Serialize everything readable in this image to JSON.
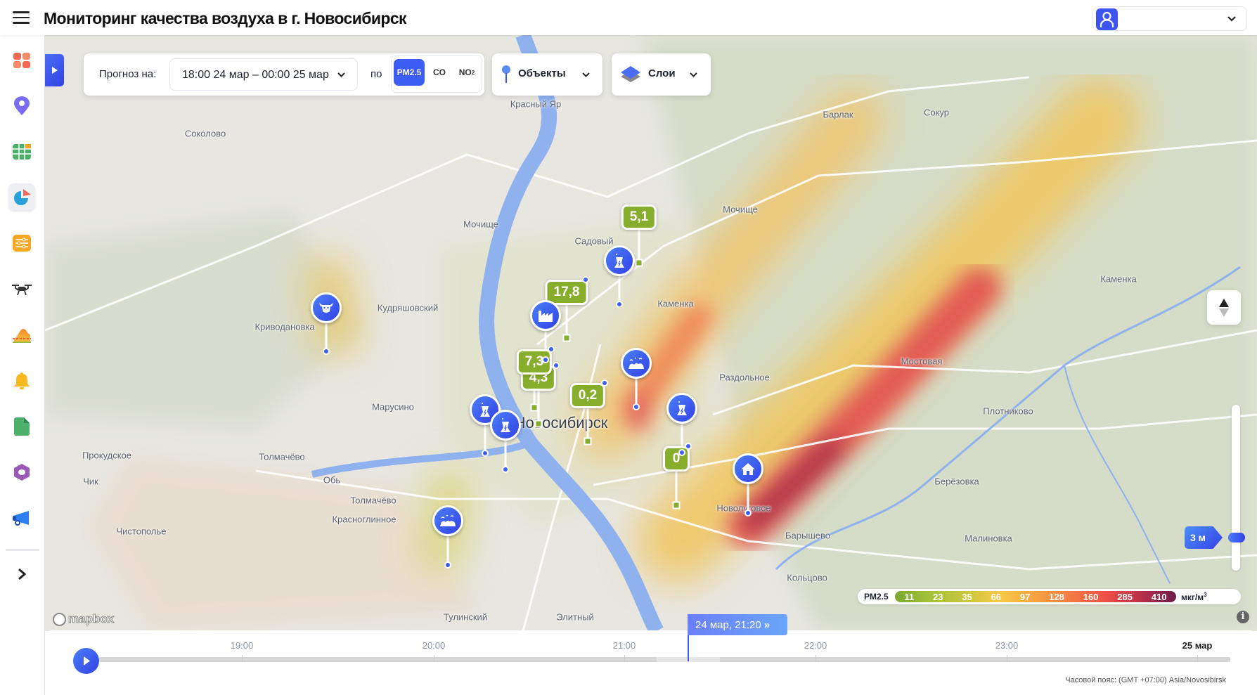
{
  "header": {
    "title": "Мониторинг качества воздуха в г. Новосибирск",
    "menu_icon": "hamburger-icon",
    "user_icon": "user-icon"
  },
  "sidebar": {
    "items": [
      {
        "icon": "dashboard-icon",
        "color": "#f26a55"
      },
      {
        "icon": "location-pin-icon",
        "color": "#7b6cf5"
      },
      {
        "icon": "table-icon",
        "color": "#4caf6a"
      },
      {
        "icon": "pie-chart-icon",
        "color": "#2aa0d8",
        "active": true
      },
      {
        "icon": "sliders-icon",
        "color": "#f5a623"
      },
      {
        "icon": "drone-icon",
        "color": "#333"
      },
      {
        "icon": "area-chart-icon",
        "color": "#f08a2a"
      },
      {
        "icon": "bell-icon",
        "color": "#f8b820"
      },
      {
        "icon": "document-icon",
        "color": "#4caf6a"
      },
      {
        "icon": "hexagon-icon",
        "color": "#9b59b6"
      },
      {
        "icon": "megaphone-icon",
        "color": "#2d7ef0"
      }
    ],
    "expand_icon": "chevron-right-icon"
  },
  "toolbar": {
    "forecast_label": "Прогноз на:",
    "period": "18:00 24 мар – 00:00 25 мар",
    "by_label": "по",
    "pollutants": [
      {
        "label": "PM2.5",
        "active": true
      },
      {
        "label": "CO",
        "active": false
      },
      {
        "label": "NO",
        "sub": "2",
        "active": false
      }
    ],
    "objects_label": "Объекты",
    "layers_label": "Слои"
  },
  "map": {
    "places": [
      "Красный Яр",
      "Соколово",
      "Барлак",
      "Сокур",
      "Мочище",
      "Мочище",
      "Садовый",
      "Кудряшовский",
      "Криводановка",
      "Каменка",
      "Каменка",
      "Мостовая",
      "Раздольное",
      "Плотниково",
      "Марусино",
      "Новосибирск",
      "Прокудское",
      "Толмачёво",
      "Обь",
      "Чик",
      "Толмачёво",
      "Красноглинное",
      "Берёзовка",
      "Новолуговое",
      "Барышево",
      "Малиновка",
      "Кольцово",
      "Чистополье",
      "Тулинский",
      "Элитный"
    ],
    "source_markers": [
      {
        "type": "cow-icon"
      },
      {
        "type": "factory-icon"
      },
      {
        "type": "power-plant-icon"
      },
      {
        "type": "landfill-icon"
      },
      {
        "type": "power-plant-icon"
      },
      {
        "type": "house-icon"
      },
      {
        "type": "power-plant-icon"
      },
      {
        "type": "power-plant-icon"
      },
      {
        "type": "landfill-icon"
      }
    ],
    "sensor_values": [
      "5,1",
      "17,8",
      "4,3",
      "7,3",
      "0,2",
      "0"
    ],
    "attribution": "mapbox",
    "height_label": "3 м",
    "height_level_fraction": 0.12
  },
  "legend": {
    "pollutant": "PM2.5",
    "stops": [
      "11",
      "23",
      "35",
      "66",
      "97",
      "128",
      "160",
      "285",
      "410"
    ],
    "unit": "мкг/м",
    "unit_sup": "3",
    "colors": [
      "#7aa82e",
      "#a4c23a",
      "#c9c63d",
      "#f7c948",
      "#f6a341",
      "#f47a45",
      "#ef4f45",
      "#b8304a",
      "#6c1d4b"
    ]
  },
  "timeline": {
    "ticks": [
      "19:00",
      "20:00",
      "21:00",
      "22:00",
      "23:00",
      "25 мар"
    ],
    "current": "24 мар, 21:20",
    "timezone": "Часовой пояс: (GMT +07:00) Asia/Novosibirsk",
    "progress_fraction": 0.556
  }
}
